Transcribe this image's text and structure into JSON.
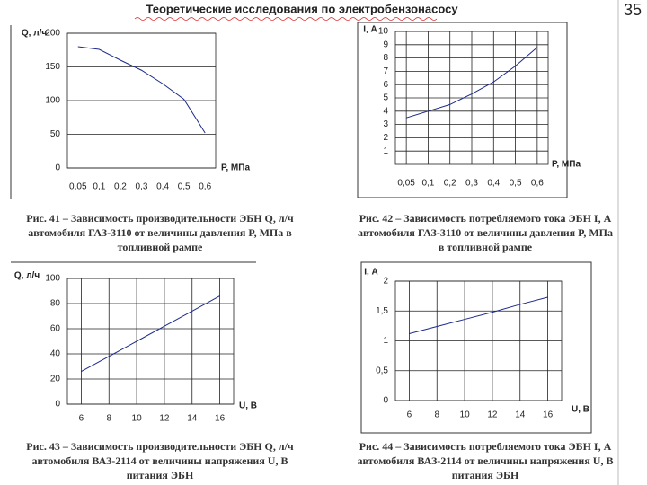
{
  "title": "Теоретические исследования по электробензонасосу",
  "page_number": "35",
  "chart_data": [
    {
      "type": "line",
      "ylabel": "Q, л/ч",
      "xlabel": "P, МПа",
      "categories": [
        "0,05",
        "0,1",
        "0,2",
        "0,3",
        "0,4",
        "0,5",
        "0,6"
      ],
      "series": [
        {
          "color": "#1c2a8a",
          "values": [
            180,
            176,
            160,
            145,
            125,
            102,
            52
          ]
        }
      ],
      "ylim": [
        0,
        200
      ],
      "yticks": [
        0,
        50,
        100,
        150,
        200
      ],
      "grid": "y",
      "caption": [
        "Рис. 41 – Зависимость производительности ЭБН Q, л/ч",
        "автомобиля ГАЗ-3110 от величины давления P, МПа в",
        "топливной рампе"
      ]
    },
    {
      "type": "line",
      "ylabel": "I, А",
      "xlabel": "P, МПа",
      "categories": [
        "0,05",
        "0,1",
        "0,2",
        "0,3",
        "0,4",
        "0,5",
        "0,6"
      ],
      "series": [
        {
          "color": "#1c2a8a",
          "values": [
            3.5,
            4.0,
            4.5,
            5.3,
            6.2,
            7.4,
            8.8
          ]
        }
      ],
      "ylim": [
        0,
        10
      ],
      "yticks": [
        1,
        2,
        3,
        4,
        5,
        6,
        7,
        8,
        9,
        10
      ],
      "grid": "both",
      "caption": [
        "Рис. 42 – Зависимость потребляемого тока ЭБН I, А",
        "автомобиля ГАЗ-3110 от величины давления P, МПа",
        "в топливной рампе"
      ]
    },
    {
      "type": "line",
      "ylabel": "Q, л/ч",
      "xlabel": "U, В",
      "x": [
        6,
        8,
        10,
        12,
        14,
        16
      ],
      "series": [
        {
          "color": "#1c2a8a",
          "values": [
            26,
            38,
            50,
            62,
            74,
            86
          ]
        }
      ],
      "xlim": [
        5,
        17
      ],
      "xticks": [
        6,
        8,
        10,
        12,
        14,
        16
      ],
      "ylim": [
        0,
        100
      ],
      "yticks": [
        0,
        20,
        40,
        60,
        80,
        100
      ],
      "grid": "both",
      "caption": [
        "Рис. 43 – Зависимость производительности ЭБН Q, л/ч",
        "автомобиля ВАЗ-2114 от величины напряжения U, В",
        "питания ЭБН"
      ]
    },
    {
      "type": "line",
      "ylabel": "I, А",
      "xlabel": "U, В",
      "x": [
        6,
        8,
        10,
        12,
        14,
        16
      ],
      "series": [
        {
          "color": "#1c2a8a",
          "values": [
            1.12,
            1.24,
            1.36,
            1.48,
            1.61,
            1.73
          ]
        }
      ],
      "xlim": [
        5,
        17
      ],
      "xticks": [
        6,
        8,
        10,
        12,
        14,
        16
      ],
      "ylim": [
        0,
        2
      ],
      "yticks": [
        0,
        {
          "value": 0.5,
          "label": "0,5"
        },
        1,
        {
          "value": 1.5,
          "label": "1,5"
        },
        2
      ],
      "grid": "both",
      "caption": [
        "Рис. 44 – Зависимость потребляемого тока ЭБН I, А",
        "автомобиля ВАЗ-2114 от величины напряжения U, В",
        "питания ЭБН"
      ]
    }
  ]
}
